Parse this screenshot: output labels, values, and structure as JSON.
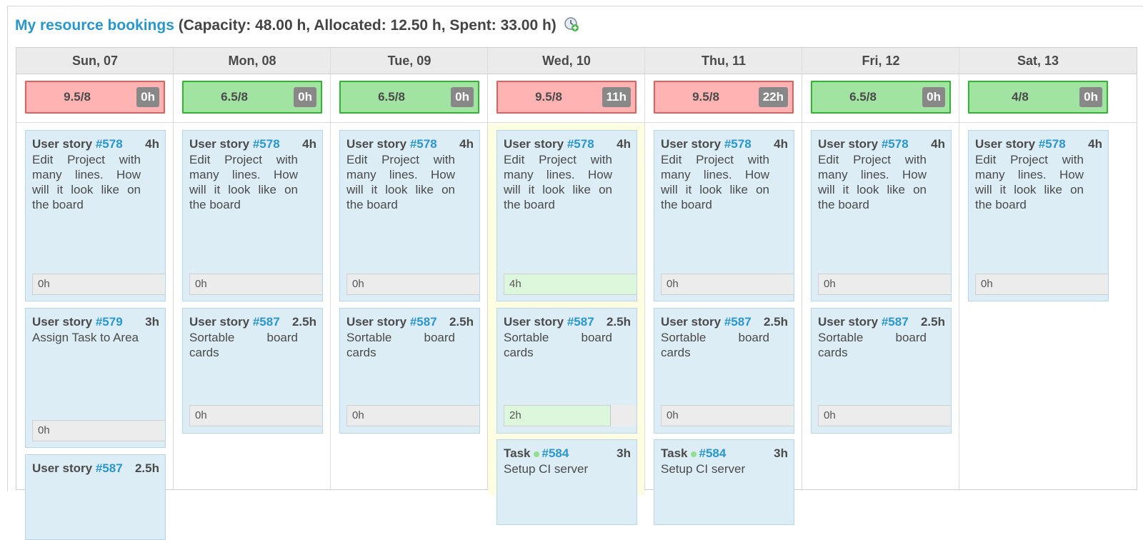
{
  "title": {
    "link": "My resource bookings",
    "stats": "(Capacity: 48.00 h, Allocated: 12.50 h, Spent: 33.00 h)"
  },
  "days": [
    {
      "label": "Sun, 07",
      "ratio": "9.5/8",
      "badge": "0h",
      "status": "over"
    },
    {
      "label": "Mon, 08",
      "ratio": "6.5/8",
      "badge": "0h",
      "status": "ok"
    },
    {
      "label": "Tue, 09",
      "ratio": "6.5/8",
      "badge": "0h",
      "status": "ok"
    },
    {
      "label": "Wed, 10",
      "ratio": "9.5/8",
      "badge": "11h",
      "status": "over"
    },
    {
      "label": "Thu, 11",
      "ratio": "9.5/8",
      "badge": "22h",
      "status": "over"
    },
    {
      "label": "Fri, 12",
      "ratio": "6.5/8",
      "badge": "0h",
      "status": "ok"
    },
    {
      "label": "Sat, 13",
      "ratio": "4/8",
      "badge": "0h",
      "status": "ok"
    }
  ],
  "cards": {
    "us578": {
      "type": "User story",
      "id": "#578",
      "hours": "4h",
      "desc": "Edit Project with many lines. How will it look like on the board"
    },
    "us579": {
      "type": "User story",
      "id": "#579",
      "hours": "3h",
      "desc": "Assign Task to Area"
    },
    "us587": {
      "type": "User story",
      "id": "#587",
      "hours": "2.5h",
      "desc": "Sortable board cards"
    },
    "task584": {
      "type": "Task",
      "id": "#584",
      "hours": "3h",
      "desc": "Setup CI server"
    }
  },
  "spent": {
    "sun_578": "0h",
    "mon_578": "0h",
    "tue_578": "0h",
    "wed_578": "4h",
    "thu_578": "0h",
    "fri_578": "0h",
    "sat_578": "0h",
    "sun_579": "0h",
    "mon_587": "0h",
    "tue_587": "0h",
    "wed_587": "2h",
    "thu_587": "0h",
    "fri_587": "0h"
  }
}
